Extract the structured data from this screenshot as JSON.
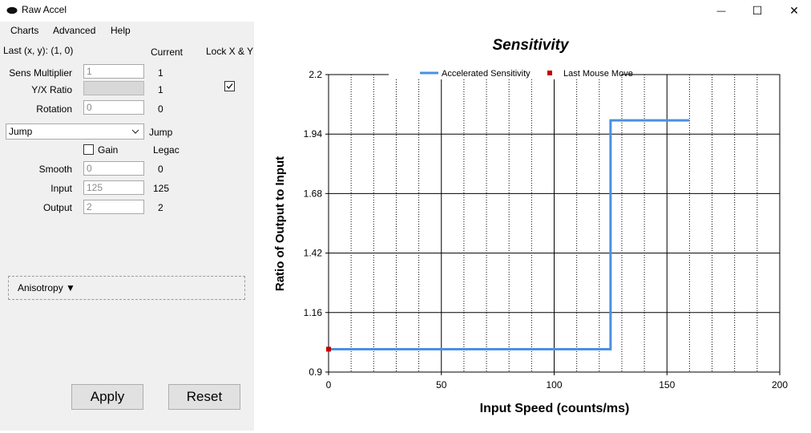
{
  "window": {
    "title": "Raw Accel",
    "minimize": "—",
    "maximize": "☐",
    "close": "✕"
  },
  "menu": [
    "Charts",
    "Advanced",
    "Help"
  ],
  "status": {
    "last_xy": "Last (x, y): (1, 0)",
    "current_header": "Current",
    "lock_header": "Lock X & Y"
  },
  "fields": {
    "sens_multiplier": {
      "label": "Sens Multiplier",
      "value": "1",
      "current": "1"
    },
    "yx_ratio": {
      "label": "Y/X Ratio",
      "value": "",
      "current": "1"
    },
    "rotation": {
      "label": "Rotation",
      "value": "0",
      "current": "0"
    },
    "smooth": {
      "label": "Smooth",
      "value": "0",
      "current": "0"
    },
    "input": {
      "label": "Input",
      "value": "125",
      "current": "125"
    },
    "output": {
      "label": "Output",
      "value": "2",
      "current": "2"
    }
  },
  "accel_type": {
    "selected": "Jump",
    "current": "Jump"
  },
  "gain": {
    "label": "Gain",
    "checked": false,
    "current": "Legac"
  },
  "lock_xy_checked": true,
  "anisotropy": {
    "label": "Anisotropy ▼"
  },
  "buttons": {
    "apply": "Apply",
    "reset": "Reset"
  },
  "colors": {
    "series": "#4a90e2",
    "marker": "#c00000"
  },
  "chart_data": {
    "type": "line",
    "title": "Sensitivity",
    "xlabel": "Input Speed (counts/ms)",
    "ylabel": "Ratio of Output to Input",
    "xlim": [
      0,
      200
    ],
    "ylim": [
      0.9,
      2.2
    ],
    "xticks": [
      "0",
      "50",
      "100",
      "150",
      "200"
    ],
    "yticks": [
      "2.2",
      "1.94",
      "1.68",
      "1.42",
      "1.16",
      "0.9"
    ],
    "grid": true,
    "legend_position": "top",
    "series": [
      {
        "name": "Accelerated Sensitivity",
        "x": [
          0,
          125,
          125,
          160
        ],
        "y": [
          1.0,
          1.0,
          2.0,
          2.0
        ]
      },
      {
        "name": "Last Mouse Move",
        "x": [
          0
        ],
        "y": [
          1.0
        ]
      }
    ]
  }
}
